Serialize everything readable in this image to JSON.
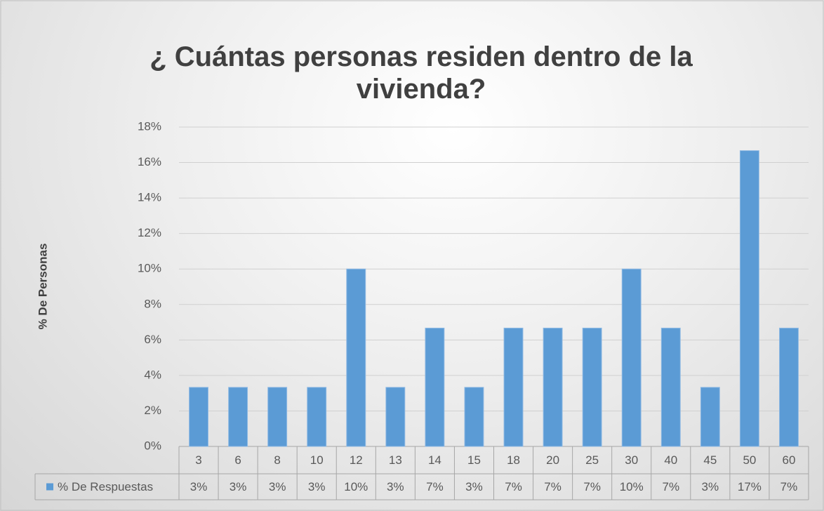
{
  "chart_data": {
    "type": "bar",
    "title": "¿ Cuántas personas residen dentro de la vivienda?",
    "y_label": "% De Personas",
    "categories": [
      "3",
      "6",
      "8",
      "10",
      "12",
      "13",
      "14",
      "15",
      "18",
      "20",
      "25",
      "30",
      "40",
      "45",
      "50",
      "60"
    ],
    "series": [
      {
        "name": "% De Respuestas",
        "color": "#5b9bd5",
        "values": [
          3.33,
          3.33,
          3.33,
          3.33,
          10,
          3.33,
          6.67,
          3.33,
          6.67,
          6.67,
          6.67,
          10,
          6.67,
          3.33,
          16.67,
          6.67
        ],
        "value_labels": [
          "3%",
          "3%",
          "3%",
          "3%",
          "10%",
          "3%",
          "7%",
          "3%",
          "7%",
          "7%",
          "7%",
          "10%",
          "7%",
          "3%",
          "17%",
          "7%"
        ]
      }
    ],
    "ylim": [
      0,
      18
    ],
    "yticks": [
      {
        "value": 0,
        "label": "0%"
      },
      {
        "value": 2,
        "label": "2%"
      },
      {
        "value": 4,
        "label": "4%"
      },
      {
        "value": 6,
        "label": "6%"
      },
      {
        "value": 8,
        "label": "8%"
      },
      {
        "value": 10,
        "label": "10%"
      },
      {
        "value": 12,
        "label": "12%"
      },
      {
        "value": 14,
        "label": "14%"
      },
      {
        "value": 16,
        "label": "16%"
      },
      {
        "value": 18,
        "label": "18%"
      }
    ],
    "grid": true
  }
}
